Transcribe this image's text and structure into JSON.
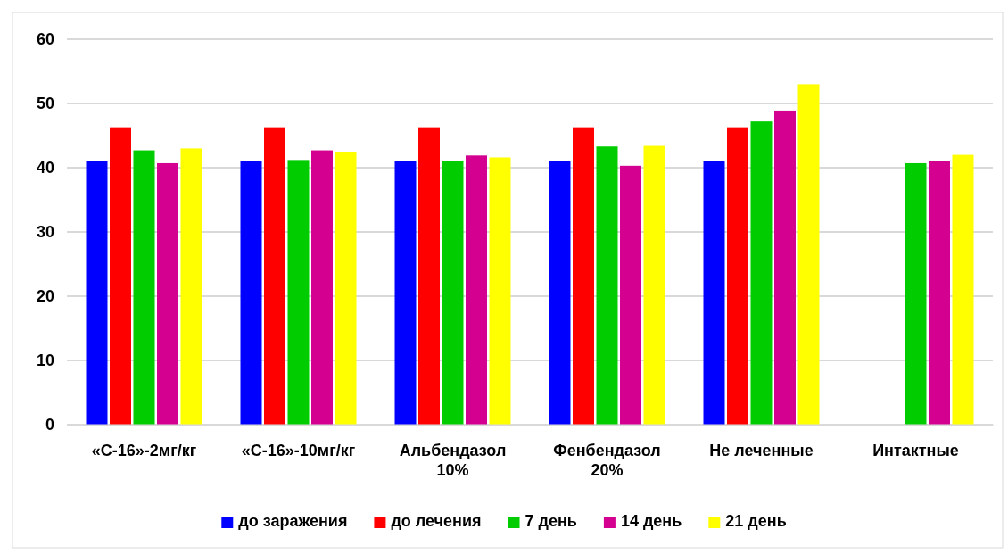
{
  "chart_data": {
    "type": "bar",
    "categories": [
      "«С-16»-2мг/кг",
      "«С-16»-10мг/кг",
      "Альбендазол 10%",
      "Фенбендазол 20%",
      "Не леченные",
      "Интактные"
    ],
    "series": [
      {
        "name": "до заражения",
        "color": "#0000ff",
        "values": [
          41.0,
          41.0,
          41.0,
          41.0,
          41.0,
          null
        ]
      },
      {
        "name": "до лечения",
        "color": "#ff0000",
        "values": [
          46.3,
          46.3,
          46.3,
          46.3,
          46.3,
          null
        ]
      },
      {
        "name": "7 день",
        "color": "#00cc00",
        "values": [
          42.7,
          41.2,
          41.0,
          43.3,
          47.2,
          40.7
        ]
      },
      {
        "name": "14 день",
        "color": "#d4008f",
        "values": [
          40.7,
          42.7,
          41.9,
          40.3,
          48.9,
          41.0
        ]
      },
      {
        "name": "21 день",
        "color": "#ffff00",
        "values": [
          43.0,
          42.5,
          41.6,
          43.4,
          53.0,
          42.0
        ]
      }
    ],
    "ylim": [
      0,
      60
    ],
    "yticks": [
      0,
      10,
      20,
      30,
      40,
      50,
      60
    ],
    "grid": "y",
    "legend": "bottom"
  }
}
